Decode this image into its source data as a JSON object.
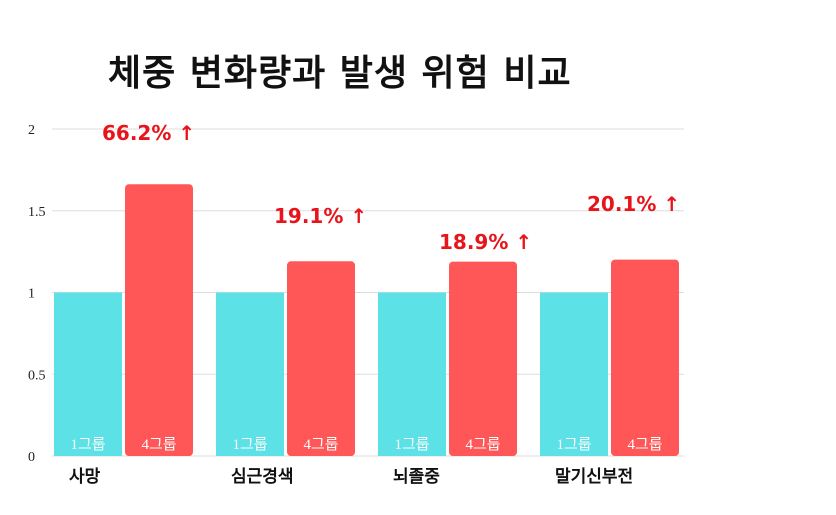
{
  "chart_data": {
    "type": "bar",
    "title": "체중 변화량과 발생 위험 비교",
    "categories": [
      "사망",
      "심근경색",
      "뇌졸중",
      "말기신부전"
    ],
    "series": [
      {
        "name": "1그룹",
        "values": [
          1,
          1,
          1,
          1
        ],
        "color": "#5ce1e6"
      },
      {
        "name": "4그룹",
        "values": [
          1.662,
          1.191,
          1.189,
          1.201
        ],
        "color": "#ff5757"
      }
    ],
    "annotations": [
      "66.2% ↑",
      "19.1% ↑",
      "18.9% ↑",
      "20.1% ↑"
    ],
    "annotation_color": "#e8141b",
    "yticks": [
      "0",
      "0.5",
      "1",
      "1.5",
      "2"
    ],
    "ylim": [
      0,
      2
    ],
    "grid": true,
    "legend": "none"
  }
}
